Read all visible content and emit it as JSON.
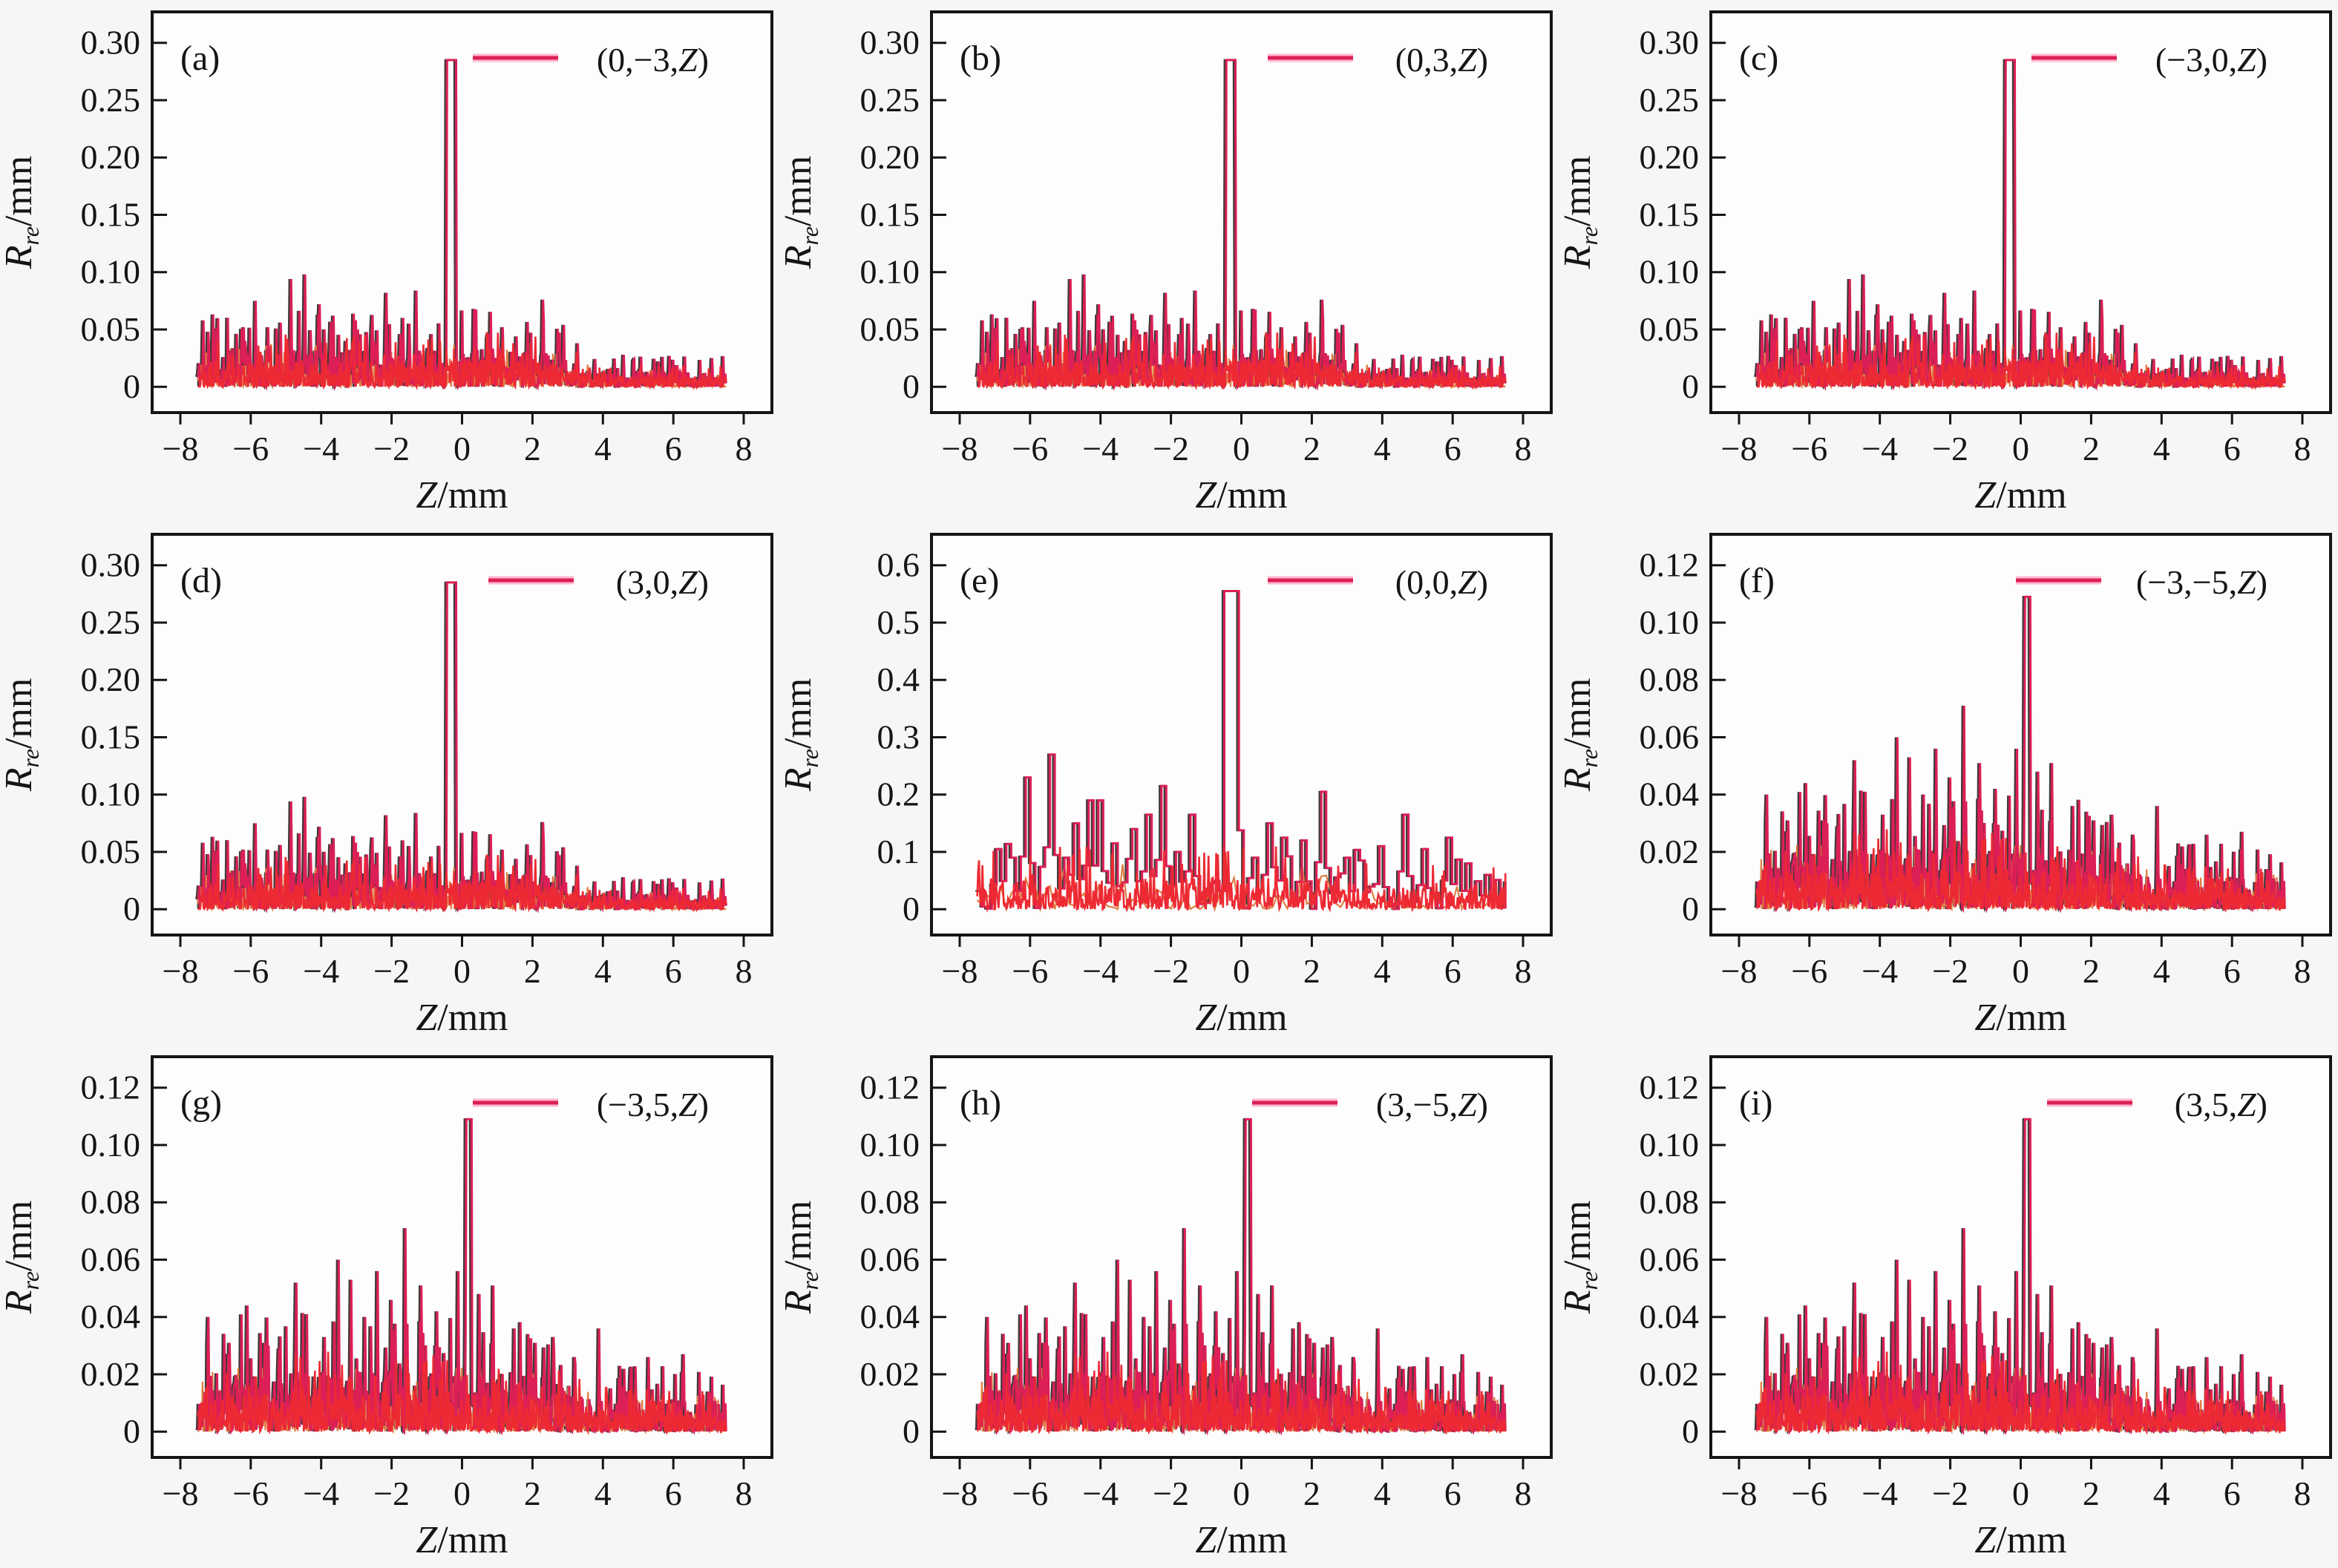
{
  "page": {
    "background": "#f6f6f6"
  },
  "colors": {
    "crimson": "#dc1f56",
    "red": "#ed2a33",
    "orange": "#e07d42",
    "dark": "#3f3a3a",
    "pink_glow": "#ffb0ca",
    "axis": "#151515",
    "text": "#151515",
    "plot_bg": "#fdfdfd"
  },
  "chart_data": {
    "type": "line",
    "grid": "off",
    "legend_position": "top-right-inside",
    "xlabel": {
      "var": "Z",
      "unit": "/mm"
    },
    "ylabel": {
      "var": "R",
      "sub": "re",
      "unit": "/mm"
    },
    "x_data_range": [
      -7.5,
      7.5
    ],
    "xlim": [
      -8.8,
      8.8
    ],
    "xticks": [
      -8,
      -6,
      -4,
      -2,
      0,
      2,
      4,
      6,
      8
    ],
    "xtick_labels": [
      "−8",
      "−6",
      "−4",
      "−2",
      "0",
      "2",
      "4",
      "6",
      "8"
    ],
    "shared_peaks": {
      "abcd": [
        [
          -7.35,
          0.058
        ],
        [
          -6.95,
          0.038
        ],
        [
          -6.2,
          0.052
        ],
        [
          -5.85,
          0.075
        ],
        [
          -5.5,
          0.052
        ],
        [
          -5.15,
          0.056
        ],
        [
          -4.85,
          0.094
        ],
        [
          -4.45,
          0.098
        ],
        [
          -4.05,
          0.072
        ],
        [
          -3.65,
          0.062
        ],
        [
          -3.3,
          0.04
        ],
        [
          -2.95,
          0.05
        ],
        [
          -2.55,
          0.052
        ],
        [
          -2.15,
          0.082
        ],
        [
          -1.75,
          0.046
        ],
        [
          -1.3,
          0.084
        ],
        [
          -0.85,
          0.046
        ],
        [
          0.35,
          0.068
        ],
        [
          0.75,
          0.046
        ],
        [
          1.15,
          0.052
        ],
        [
          1.55,
          0.044
        ],
        [
          2.3,
          0.076
        ],
        [
          2.9,
          0.054
        ],
        [
          3.3,
          0.038
        ],
        [
          4.6,
          0.028
        ],
        [
          5.9,
          0.027
        ],
        [
          7.1,
          0.025
        ]
      ],
      "e": [
        [
          -7.0,
          0.105
        ],
        [
          -6.6,
          0.09
        ],
        [
          -6.1,
          0.23
        ],
        [
          -5.5,
          0.27
        ],
        [
          -5.0,
          0.09
        ],
        [
          -4.7,
          0.15
        ],
        [
          -4.35,
          0.19
        ],
        [
          -4.05,
          0.19
        ],
        [
          -3.6,
          0.115
        ],
        [
          -3.1,
          0.14
        ],
        [
          -2.7,
          0.165
        ],
        [
          -2.25,
          0.215
        ],
        [
          -1.85,
          0.1
        ],
        [
          -1.4,
          0.165
        ],
        [
          0.3,
          0.09
        ],
        [
          0.75,
          0.15
        ],
        [
          1.2,
          0.125
        ],
        [
          1.7,
          0.12
        ],
        [
          2.3,
          0.205
        ],
        [
          2.9,
          0.09
        ],
        [
          3.4,
          0.085
        ],
        [
          3.9,
          0.11
        ],
        [
          4.6,
          0.165
        ],
        [
          5.2,
          0.105
        ],
        [
          5.8,
          0.125
        ],
        [
          6.4,
          0.08
        ],
        [
          7.0,
          0.06
        ]
      ],
      "fghi": [
        [
          -7.2,
          0.04
        ],
        [
          -6.6,
          0.031
        ],
        [
          -6.1,
          0.044
        ],
        [
          -5.6,
          0.031
        ],
        [
          -5.2,
          0.029
        ],
        [
          -4.7,
          0.052
        ],
        [
          -4.4,
          0.041
        ],
        [
          -3.9,
          0.033
        ],
        [
          -3.5,
          0.06
        ],
        [
          -3.15,
          0.053
        ],
        [
          -2.75,
          0.04
        ],
        [
          -2.4,
          0.056
        ],
        [
          -2.0,
          0.046
        ],
        [
          -1.6,
          0.071
        ],
        [
          -1.15,
          0.051
        ],
        [
          -0.7,
          0.042
        ],
        [
          -0.1,
          0.056
        ],
        [
          0.5,
          0.048
        ],
        [
          0.9,
          0.051
        ],
        [
          1.5,
          0.036
        ],
        [
          2.1,
          0.031
        ],
        [
          2.6,
          0.033
        ],
        [
          3.2,
          0.026
        ],
        [
          3.9,
          0.036
        ],
        [
          4.8,
          0.022
        ],
        [
          5.3,
          0.026
        ],
        [
          6.3,
          0.027
        ],
        [
          7.0,
          0.014
        ]
      ]
    },
    "panels": [
      {
        "id": "a",
        "letter": "(a)",
        "legend": "(0,−3,Z)",
        "mode": "line",
        "ymax": 0.3,
        "yticks": [
          0,
          0.05,
          0.1,
          0.15,
          0.2,
          0.25,
          0.3
        ],
        "ytick_labels": [
          "0",
          "0.05",
          "0.10",
          "0.15",
          "0.20",
          "0.25",
          "0.30"
        ],
        "peaks_ref": "abcd",
        "main_peak": {
          "x": -0.3,
          "y": 0.285,
          "w": 0.28
        },
        "noise": {
          "seed": 11,
          "n": 760,
          "base_amp": 0.034,
          "right_scale": 0.4,
          "red_seed": 53,
          "red_amp": 0.024
        }
      },
      {
        "id": "b",
        "letter": "(b)",
        "legend": "(0,3,Z)",
        "mode": "line",
        "ymax": 0.3,
        "yticks": [
          0,
          0.05,
          0.1,
          0.15,
          0.2,
          0.25,
          0.3
        ],
        "ytick_labels": [
          "0",
          "0.05",
          "0.10",
          "0.15",
          "0.20",
          "0.25",
          "0.30"
        ],
        "peaks_ref": "abcd",
        "main_peak": {
          "x": -0.3,
          "y": 0.285,
          "w": 0.28
        },
        "noise": {
          "seed": 11,
          "n": 760,
          "base_amp": 0.034,
          "right_scale": 0.4,
          "red_seed": 53,
          "red_amp": 0.024
        }
      },
      {
        "id": "c",
        "letter": "(c)",
        "legend": "(−3,0,Z)",
        "mode": "line",
        "ymax": 0.3,
        "yticks": [
          0,
          0.05,
          0.1,
          0.15,
          0.2,
          0.25,
          0.3
        ],
        "ytick_labels": [
          "0",
          "0.05",
          "0.10",
          "0.15",
          "0.20",
          "0.25",
          "0.30"
        ],
        "peaks_ref": "abcd",
        "main_peak": {
          "x": -0.3,
          "y": 0.285,
          "w": 0.28
        },
        "noise": {
          "seed": 11,
          "n": 760,
          "base_amp": 0.034,
          "right_scale": 0.4,
          "red_seed": 53,
          "red_amp": 0.024
        }
      },
      {
        "id": "d",
        "letter": "(d)",
        "legend": "(3,0,Z)",
        "mode": "line",
        "ymax": 0.3,
        "yticks": [
          0,
          0.05,
          0.1,
          0.15,
          0.2,
          0.25,
          0.3
        ],
        "ytick_labels": [
          "0",
          "0.05",
          "0.10",
          "0.15",
          "0.20",
          "0.25",
          "0.30"
        ],
        "peaks_ref": "abcd",
        "main_peak": {
          "x": -0.3,
          "y": 0.285,
          "w": 0.28
        },
        "noise": {
          "seed": 11,
          "n": 760,
          "base_amp": 0.034,
          "right_scale": 0.4,
          "red_seed": 53,
          "red_amp": 0.024
        }
      },
      {
        "id": "e",
        "letter": "(e)",
        "legend": "(0,0,Z)",
        "mode": "step",
        "ymax": 0.6,
        "yticks": [
          0,
          0.1,
          0.2,
          0.3,
          0.4,
          0.5,
          0.6
        ],
        "ytick_labels": [
          "0",
          "0.1",
          "0.2",
          "0.3",
          "0.4",
          "0.5",
          "0.6"
        ],
        "peaks_ref": "e",
        "main_peak": {
          "x": -0.35,
          "y": 0.555,
          "w": 0.5
        },
        "noise": {
          "seed": 5,
          "n": 110,
          "base_amp": 0.075,
          "right_scale": 0.7,
          "red_seed": 31,
          "red_amp": 0.055,
          "red_n": 620
        }
      },
      {
        "id": "f",
        "letter": "(f)",
        "legend": "(−3,−5,Z)",
        "mode": "line",
        "ymax": 0.12,
        "yticks": [
          0,
          0.02,
          0.04,
          0.06,
          0.08,
          0.1,
          0.12
        ],
        "ytick_labels": [
          "0",
          "0.02",
          "0.04",
          "0.06",
          "0.08",
          "0.10",
          "0.12"
        ],
        "peaks_ref": "fghi",
        "main_peak": {
          "x": 0.2,
          "y": 0.109,
          "w": 0.16
        },
        "noise": {
          "seed": 9,
          "n": 800,
          "base_amp": 0.021,
          "right_scale": 0.55,
          "red_seed": 71,
          "red_amp": 0.014
        }
      },
      {
        "id": "g",
        "letter": "(g)",
        "legend": "(−3,5,Z)",
        "mode": "line",
        "ymax": 0.12,
        "yticks": [
          0,
          0.02,
          0.04,
          0.06,
          0.08,
          0.1,
          0.12
        ],
        "ytick_labels": [
          "0",
          "0.02",
          "0.04",
          "0.06",
          "0.08",
          "0.10",
          "0.12"
        ],
        "peaks_ref": "fghi",
        "main_peak": {
          "x": 0.2,
          "y": 0.109,
          "w": 0.16
        },
        "noise": {
          "seed": 9,
          "n": 800,
          "base_amp": 0.021,
          "right_scale": 0.55,
          "red_seed": 71,
          "red_amp": 0.014
        }
      },
      {
        "id": "h",
        "letter": "(h)",
        "legend": "(3,−5,Z)",
        "mode": "line",
        "ymax": 0.12,
        "yticks": [
          0,
          0.02,
          0.04,
          0.06,
          0.08,
          0.1,
          0.12
        ],
        "ytick_labels": [
          "0",
          "0.02",
          "0.04",
          "0.06",
          "0.08",
          "0.10",
          "0.12"
        ],
        "peaks_ref": "fghi",
        "main_peak": {
          "x": 0.2,
          "y": 0.109,
          "w": 0.16
        },
        "noise": {
          "seed": 9,
          "n": 800,
          "base_amp": 0.021,
          "right_scale": 0.55,
          "red_seed": 71,
          "red_amp": 0.014
        }
      },
      {
        "id": "i",
        "letter": "(i)",
        "legend": "(3,5,Z)",
        "mode": "line",
        "ymax": 0.12,
        "yticks": [
          0,
          0.02,
          0.04,
          0.06,
          0.08,
          0.1,
          0.12
        ],
        "ytick_labels": [
          "0",
          "0.02",
          "0.04",
          "0.06",
          "0.08",
          "0.10",
          "0.12"
        ],
        "peaks_ref": "fghi",
        "main_peak": {
          "x": 0.2,
          "y": 0.109,
          "w": 0.16
        },
        "noise": {
          "seed": 9,
          "n": 800,
          "base_amp": 0.021,
          "right_scale": 0.55,
          "red_seed": 71,
          "red_amp": 0.014
        }
      }
    ]
  }
}
